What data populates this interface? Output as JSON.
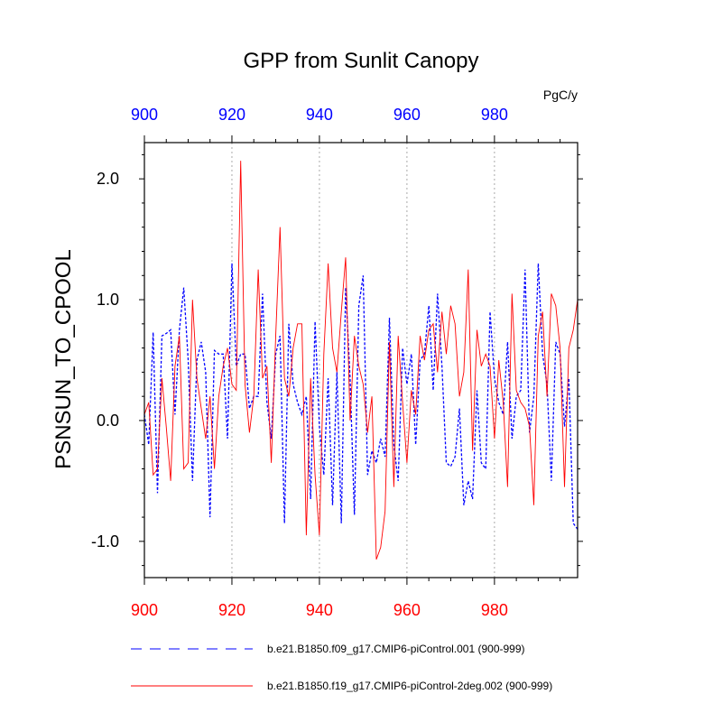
{
  "chart_data": {
    "type": "line",
    "title": "GPP from Sunlit Canopy",
    "units": "PgC/y",
    "ylabel": "PSNSUN_TO_CPOOL",
    "xlim": [
      900,
      999
    ],
    "ylim": [
      -1.3,
      2.3
    ],
    "y_ticks": [
      "2.0",
      "1.0",
      "0.0",
      "-1.0"
    ],
    "y_tick_values": [
      2.0,
      1.0,
      0.0,
      -1.0
    ],
    "x_ticks_top": [
      "900",
      "920",
      "940",
      "960",
      "980"
    ],
    "x_ticks_bottom": [
      "900",
      "920",
      "940",
      "960",
      "980"
    ],
    "x_tick_values": [
      900,
      920,
      940,
      960,
      980
    ],
    "grid": "vertical dotted at 920, 940, 960, 980",
    "legend_placement": "below plot",
    "series": [
      {
        "name": "b.e21.B1850.f09_g17.CMIP6-piControl.001 (900-999)",
        "color": "#0000ff",
        "style": "dashed",
        "x_start": 900,
        "values": [
          0.05,
          -0.2,
          0.73,
          -0.6,
          0.7,
          0.72,
          0.75,
          0.05,
          0.75,
          1.1,
          0.5,
          -0.5,
          0.5,
          0.65,
          0.4,
          -0.8,
          0.58,
          0.55,
          0.55,
          -0.15,
          1.3,
          0.45,
          0.55,
          0.55,
          0.1,
          0.2,
          0.2,
          1.05,
          0.15,
          -0.15,
          0.55,
          0.7,
          -0.85,
          0.8,
          0.3,
          0.15,
          0.05,
          0.2,
          -0.65,
          0.82,
          -0.05,
          -0.45,
          0.35,
          -0.7,
          0.4,
          -0.85,
          1.1,
          0.35,
          -0.78,
          0.95,
          1.2,
          -0.45,
          -0.25,
          -0.35,
          -0.15,
          -0.3,
          0.85,
          -0.2,
          -0.5,
          0.6,
          0.3,
          0.55,
          -0.2,
          0.5,
          0.55,
          0.95,
          0.25,
          1.05,
          0.45,
          -0.35,
          -0.38,
          -0.3,
          0.1,
          -0.7,
          -0.5,
          -0.65,
          0.25,
          -0.35,
          -0.4,
          0.9,
          0.35,
          0.15,
          0.05,
          0.65,
          -0.15,
          0.2,
          0.25,
          1.25,
          -0.1,
          0.2,
          1.3,
          0.55,
          0.3,
          -0.5,
          0.65,
          0.55,
          -0.05,
          0.35,
          -0.85,
          -0.9
        ]
      },
      {
        "name": "b.e21.B1850.f19_g17.CMIP6-piControl-2deg.002 (900-999)",
        "color": "#ff0000",
        "style": "solid",
        "x_start": 900,
        "values": [
          0.05,
          0.15,
          -0.45,
          -0.4,
          0.35,
          -0.05,
          -0.5,
          0.45,
          0.7,
          -0.4,
          -0.35,
          1.0,
          0.35,
          0.1,
          -0.15,
          0.2,
          -0.4,
          0.2,
          0.45,
          0.6,
          0.3,
          0.25,
          2.15,
          0.3,
          -0.1,
          0.2,
          1.25,
          0.35,
          0.45,
          -0.35,
          0.7,
          1.6,
          0.35,
          0.2,
          0.6,
          0.8,
          0.8,
          -0.95,
          0.35,
          -0.45,
          -0.95,
          0.55,
          1.3,
          0.6,
          0.4,
          0.9,
          1.35,
          0.0,
          0.7,
          0.45,
          0.3,
          -0.1,
          0.2,
          -1.15,
          -1.05,
          -0.75,
          0.65,
          -0.55,
          0.7,
          0.15,
          -0.35,
          0.25,
          0.05,
          0.7,
          0.5,
          0.75,
          0.8,
          0.4,
          0.9,
          0.55,
          0.95,
          0.8,
          0.2,
          0.4,
          1.25,
          -0.25,
          0.75,
          0.45,
          0.55,
          0.45,
          -0.15,
          0.5,
          0.15,
          -0.55,
          1.05,
          0.25,
          0.15,
          0.1,
          -0.05,
          -0.7,
          0.7,
          0.9,
          0.2,
          1.05,
          0.95,
          0.6,
          -0.55,
          0.6,
          0.75,
          1.0
        ]
      }
    ]
  }
}
